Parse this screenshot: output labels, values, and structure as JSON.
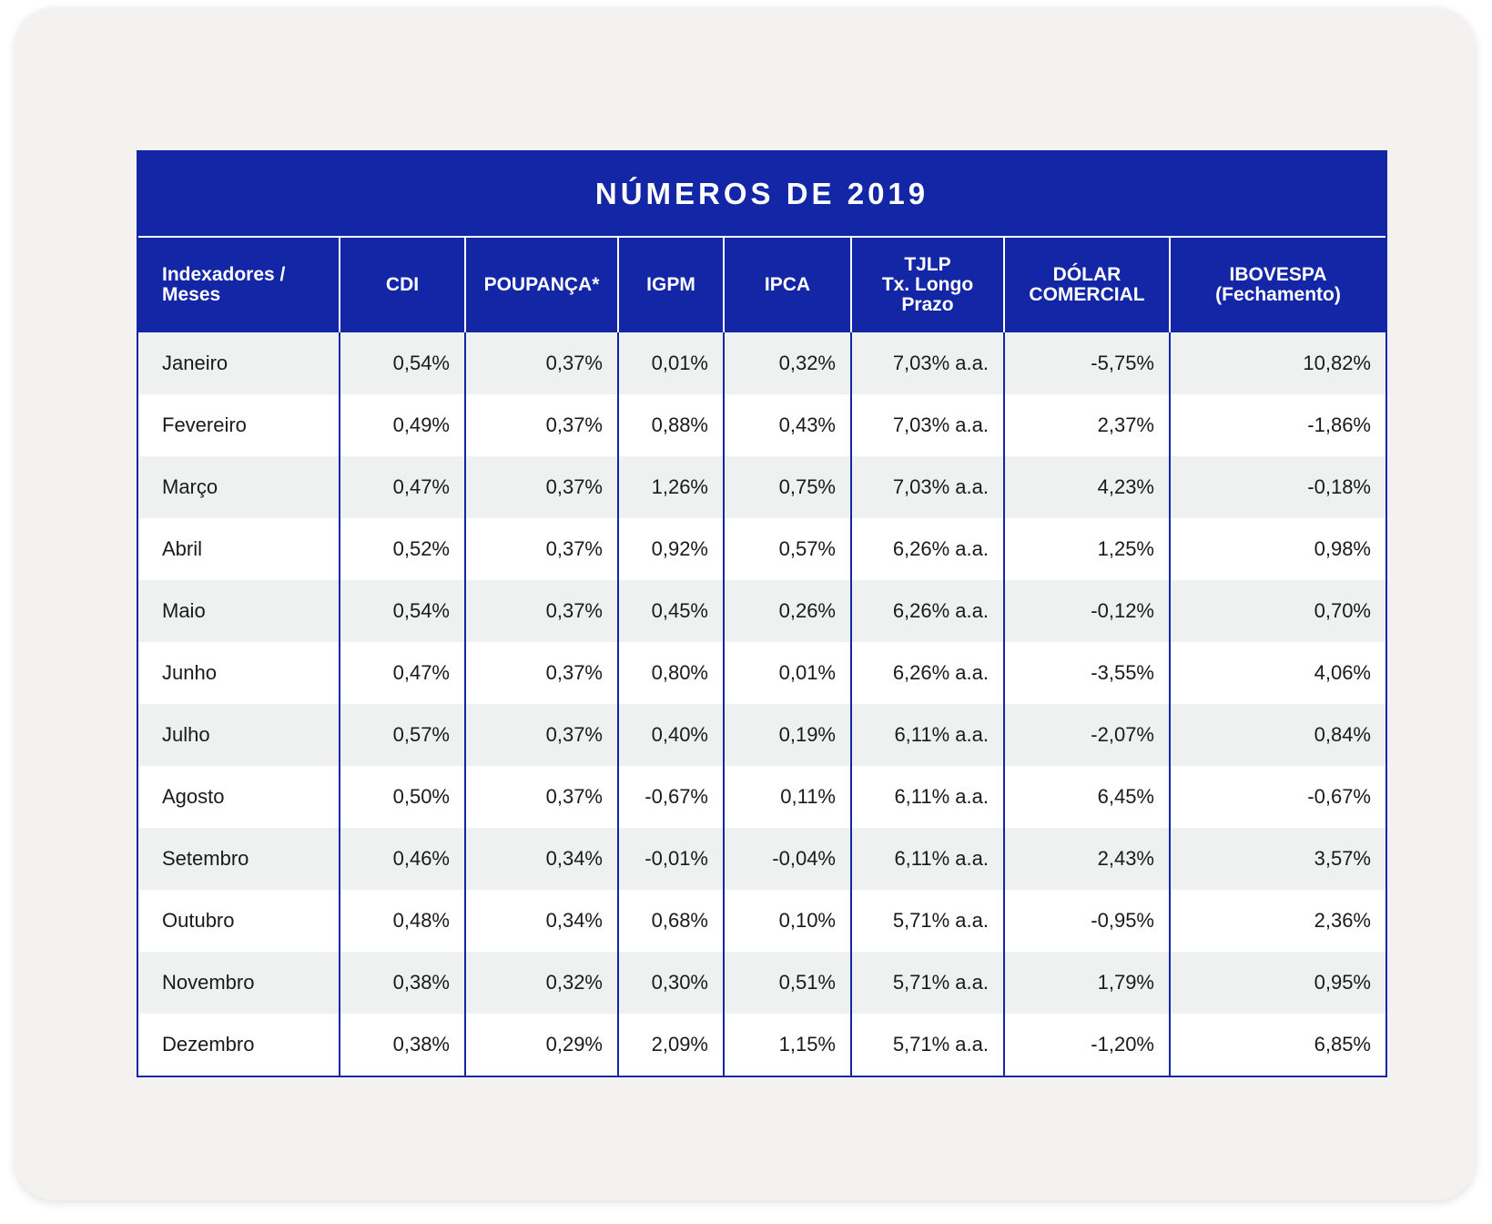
{
  "title": "NÚMEROS DE 2019",
  "columns": [
    {
      "line1": "Indexadores /",
      "line2": "Meses",
      "line3": ""
    },
    {
      "line1": "CDI",
      "line2": "",
      "line3": ""
    },
    {
      "line1": "POUPANÇA*",
      "line2": "",
      "line3": ""
    },
    {
      "line1": "IGPM",
      "line2": "",
      "line3": ""
    },
    {
      "line1": "IPCA",
      "line2": "",
      "line3": ""
    },
    {
      "line1": "TJLP",
      "line2": "Tx. Longo",
      "line3": "Prazo"
    },
    {
      "line1": "DÓLAR",
      "line2": "COMERCIAL",
      "line3": ""
    },
    {
      "line1": "IBOVESPA",
      "line2": "(Fechamento)",
      "line3": ""
    }
  ],
  "rows": [
    [
      "Janeiro",
      "0,54%",
      "0,37%",
      "0,01%",
      "0,32%",
      "7,03% a.a.",
      "-5,75%",
      "10,82%"
    ],
    [
      "Fevereiro",
      "0,49%",
      "0,37%",
      "0,88%",
      "0,43%",
      "7,03% a.a.",
      "2,37%",
      "-1,86%"
    ],
    [
      "Março",
      "0,47%",
      "0,37%",
      "1,26%",
      "0,75%",
      "7,03% a.a.",
      "4,23%",
      "-0,18%"
    ],
    [
      "Abril",
      "0,52%",
      "0,37%",
      "0,92%",
      "0,57%",
      "6,26% a.a.",
      "1,25%",
      "0,98%"
    ],
    [
      "Maio",
      "0,54%",
      "0,37%",
      "0,45%",
      "0,26%",
      "6,26% a.a.",
      "-0,12%",
      "0,70%"
    ],
    [
      "Junho",
      "0,47%",
      "0,37%",
      "0,80%",
      "0,01%",
      "6,26% a.a.",
      "-3,55%",
      "4,06%"
    ],
    [
      "Julho",
      "0,57%",
      "0,37%",
      "0,40%",
      "0,19%",
      "6,11% a.a.",
      "-2,07%",
      "0,84%"
    ],
    [
      "Agosto",
      "0,50%",
      "0,37%",
      "-0,67%",
      "0,11%",
      "6,11% a.a.",
      "6,45%",
      "-0,67%"
    ],
    [
      "Setembro",
      "0,46%",
      "0,34%",
      "-0,01%",
      "-0,04%",
      "6,11% a.a.",
      "2,43%",
      "3,57%"
    ],
    [
      "Outubro",
      "0,48%",
      "0,34%",
      "0,68%",
      "0,10%",
      "5,71% a.a.",
      "-0,95%",
      "2,36%"
    ],
    [
      "Novembro",
      "0,38%",
      "0,32%",
      "0,30%",
      "0,51%",
      "5,71% a.a.",
      "1,79%",
      "0,95%"
    ],
    [
      "Dezembro",
      "0,38%",
      "0,29%",
      "2,09%",
      "1,15%",
      "5,71% a.a.",
      "-1,20%",
      "6,85%"
    ]
  ]
}
